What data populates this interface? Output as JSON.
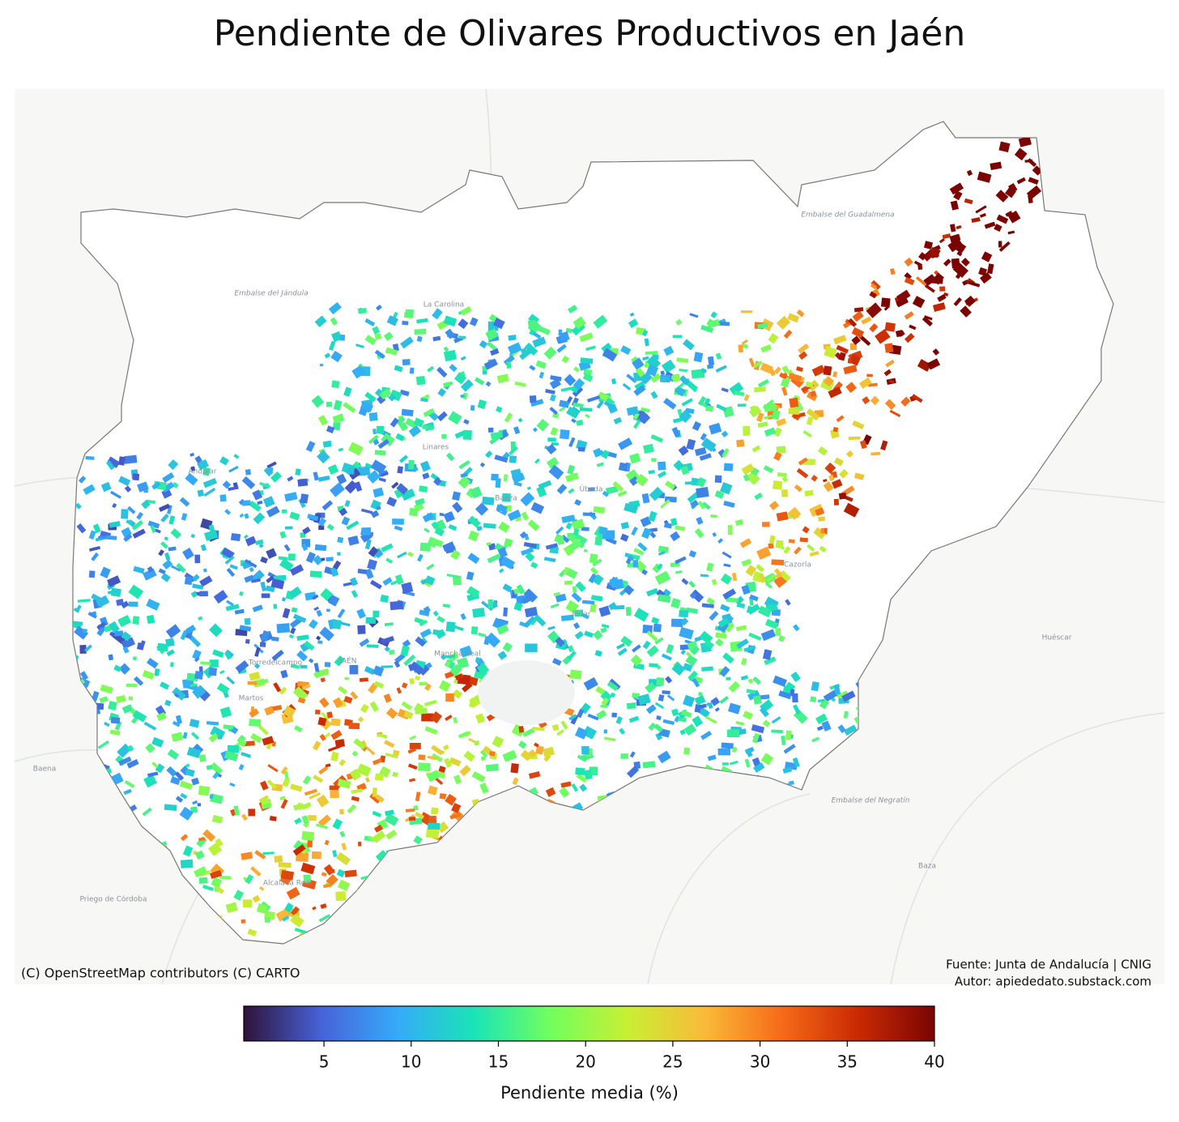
{
  "map_data": {
    "title": "Pendiente de Olivares Productivos en Jaén",
    "place_labels": [
      "Embalse del Jándula",
      "La Carolina",
      "Embalse del Guadalmena",
      "Andújar",
      "Linares",
      "Úbeda",
      "Baeza",
      "Cazorla",
      "Jódar",
      "Mancha Real",
      "JAÉN",
      "Torredelcampo",
      "Martos",
      "Huéscar",
      "Baena",
      "Priego de Córdoba",
      "Alcalá la Real",
      "Embalse del Negratín",
      "Baza"
    ],
    "attribution": "(C) OpenStreetMap contributors (C) CARTO",
    "source": [
      "Fuente: Junta de Andalucía | CNIG",
      "Autor: apiededato.substack.com"
    ],
    "colorbar": {
      "label": "Pendiente media (%)",
      "range": [
        0.4,
        40
      ],
      "ticks": [
        5,
        10,
        15,
        20,
        25,
        30,
        35,
        40
      ],
      "colormap": [
        "#30123b",
        "#4662d7",
        "#36aaf9",
        "#1ae4b6",
        "#72fe5e",
        "#c8ef34",
        "#faba39",
        "#f66b19",
        "#ca2a04",
        "#7a0403"
      ]
    }
  }
}
